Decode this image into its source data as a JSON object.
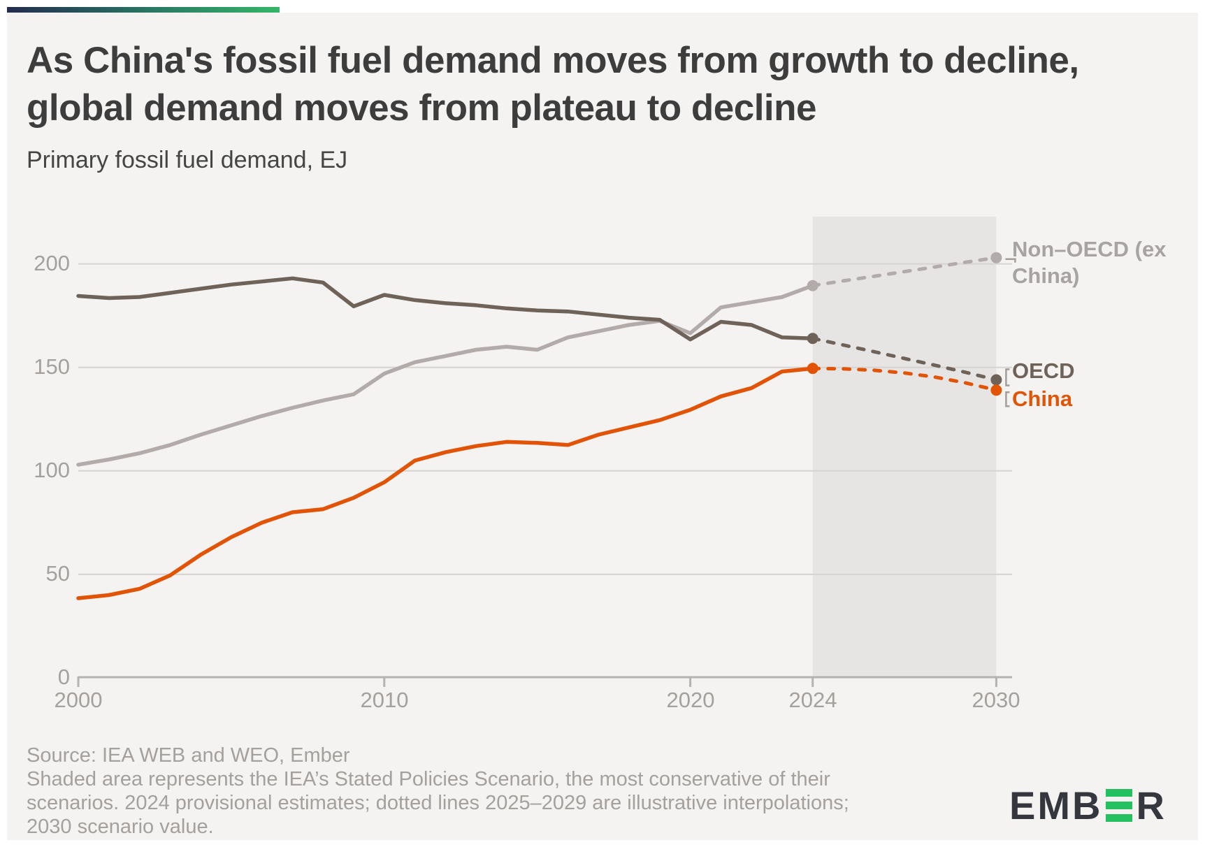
{
  "header": {
    "title_line1": "As China's fossil fuel demand moves from growth to decline,",
    "title_line2": "global demand moves from plateau to decline",
    "subtitle": "Primary fossil fuel demand, EJ"
  },
  "chart_data": {
    "type": "line",
    "title": "As China's fossil fuel demand moves from growth to decline, global demand moves from plateau to decline",
    "subtitle": "Primary fossil fuel demand, EJ",
    "xlabel": "",
    "ylabel": "EJ",
    "xlim": [
      2000,
      2030
    ],
    "ylim": [
      0,
      210
    ],
    "grid": "horizontal",
    "legend_position": "right-of-lines",
    "y_ticks": [
      0,
      50,
      100,
      150,
      200
    ],
    "y_tick_labels": [
      "0",
      "50",
      "100",
      "150",
      "200"
    ],
    "x_tick_years": [
      2000,
      2010,
      2020,
      2024,
      2030
    ],
    "x_tick_labels": [
      "2000",
      "2010",
      "2020",
      "2024",
      "2030"
    ],
    "years": [
      2000,
      2001,
      2002,
      2003,
      2004,
      2005,
      2006,
      2007,
      2008,
      2009,
      2010,
      2011,
      2012,
      2013,
      2014,
      2015,
      2016,
      2017,
      2018,
      2019,
      2020,
      2021,
      2022,
      2023,
      2024
    ],
    "projection_years": [
      2024,
      2025,
      2026,
      2027,
      2028,
      2029,
      2030
    ],
    "shaded_region": {
      "from_year": 2024,
      "to_year": 2030,
      "color": "#e7e5e3",
      "meaning": "IEA Stated Policies Scenario"
    },
    "series": [
      {
        "name": "Non-OECD (ex China)",
        "label_line1": "Non–OECD (ex",
        "label_line2": "China)",
        "color": "#b3abaa",
        "label_color": "#a8a2a0",
        "values": [
          103,
          105.5,
          108.5,
          112.5,
          117.5,
          122,
          126.5,
          130.5,
          134,
          137,
          147,
          152.5,
          155.5,
          158.5,
          160,
          158.5,
          164.5,
          167.5,
          170.5,
          172.5,
          166.5,
          179,
          181.5,
          184,
          189.5
        ],
        "projection": [
          189.5,
          191.8,
          194,
          196.3,
          198.5,
          200.8,
          203
        ]
      },
      {
        "name": "OECD",
        "label_line1": "OECD",
        "label_line2": "",
        "color": "#6f6258",
        "label_color": "#6f6258",
        "values": [
          184.5,
          183.5,
          184,
          186,
          188,
          190,
          191.5,
          193,
          191,
          179.5,
          185,
          182.5,
          181,
          180,
          178.5,
          177.5,
          177,
          175.5,
          174,
          173,
          163.5,
          172,
          170.5,
          164.5,
          164
        ],
        "projection": [
          164,
          160.8,
          157.6,
          154.3,
          151,
          147.6,
          144
        ]
      },
      {
        "name": "China",
        "label_line1": "China",
        "label_line2": "",
        "color": "#e25405",
        "label_color": "#e25405",
        "values": [
          38.5,
          40,
          43,
          49.5,
          59.5,
          68,
          75,
          80,
          81.5,
          87,
          94.5,
          105,
          109,
          112,
          114,
          113.5,
          112.5,
          117.5,
          121,
          124.5,
          129.5,
          136,
          140,
          148,
          149.5
        ],
        "projection": [
          149.5,
          149.3,
          148.6,
          147.3,
          145.3,
          142.5,
          139
        ]
      }
    ]
  },
  "footer": {
    "source_line1": "Source: IEA WEB and WEO, Ember",
    "source_line2": "Shaded area represents the IEA’s Stated Policies Scenario, the most conservative of their",
    "source_line3": "scenarios. 2024 provisional estimates; dotted lines 2025–2029 are illustrative interpolations;",
    "source_line4": "2030 scenario value.",
    "logo_prefix": "EMB",
    "logo_suffix": "R",
    "logo_name": "EMBER"
  },
  "theme": {
    "background": "#ffffff",
    "card": "#f4f3f1",
    "grid_color": "#d6d3d1",
    "axis_color": "#b6b2af",
    "tick_text": "#a5a09c",
    "title_text": "#3d3d3d",
    "bar_gradient_start": "#232c50",
    "bar_gradient_end": "#37b568",
    "logo_green": "#25c05f"
  }
}
